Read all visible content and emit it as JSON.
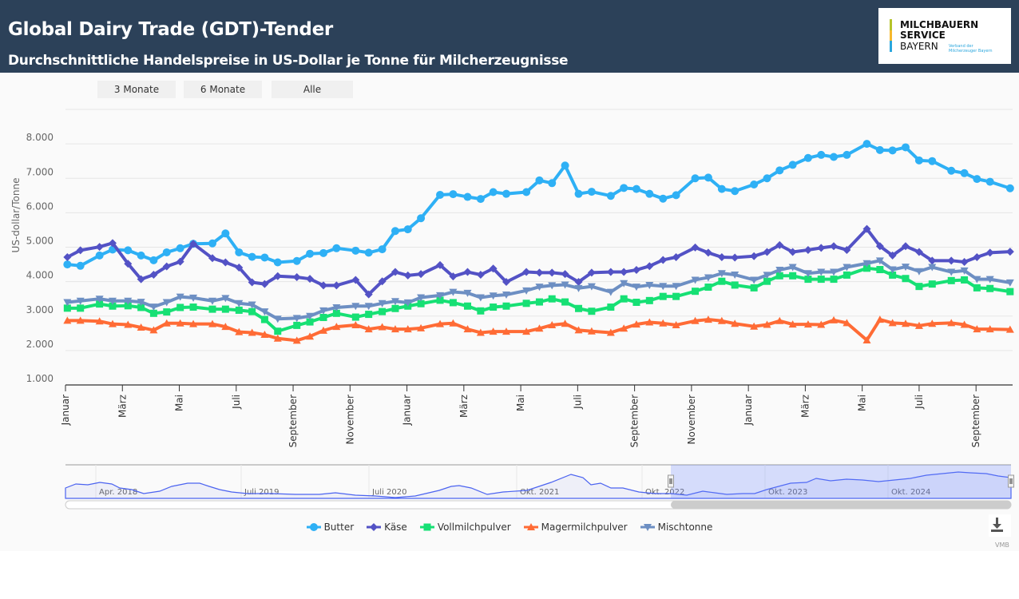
{
  "header": {
    "title": "Global Dairy Trade (GDT)-Tender",
    "subtitle": "Durchschnittliche Handelspreise in US-Dollar je Tonne für Milcherzeugnisse"
  },
  "logo": {
    "line1": "MILCHBAUERN",
    "line2": "SERVICE",
    "line3": "BAYERN",
    "tagline1": "Verband der",
    "tagline2": "Milcherzeuger Bayern",
    "colors": [
      "#b5c32a",
      "#f6b82d",
      "#2aa6dd"
    ]
  },
  "range_buttons": [
    "3 Monate",
    "6 Monate",
    "Alle"
  ],
  "chart_data": {
    "type": "line",
    "ylabel": "US-dollar/Tonne",
    "ylim": [
      1000,
      9000
    ],
    "yticks": [
      "1.000",
      "2.000",
      "3.000",
      "4.000",
      "5.000",
      "6.000",
      "7.000",
      "8.000"
    ],
    "ytick_values": [
      1000,
      2000,
      3000,
      4000,
      5000,
      6000,
      7000,
      8000
    ],
    "xticks": [
      {
        "label": "Januar",
        "date": "2023-01-01"
      },
      {
        "label": "März",
        "date": "2023-03-01"
      },
      {
        "label": "Mai",
        "date": "2023-05-01"
      },
      {
        "label": "Juli",
        "date": "2023-07-01"
      },
      {
        "label": "September",
        "date": "2023-09-01"
      },
      {
        "label": "November",
        "date": "2023-11-01"
      },
      {
        "label": "Januar",
        "date": "2024-01-01"
      },
      {
        "label": "März",
        "date": "2024-03-01"
      },
      {
        "label": "Mai",
        "date": "2024-05-01"
      },
      {
        "label": "Juli",
        "date": "2024-07-01"
      },
      {
        "label": "September",
        "date": "2024-09-01"
      },
      {
        "label": "November",
        "date": "2024-11-01"
      },
      {
        "label": "Januar",
        "date": "2025-01-01"
      },
      {
        "label": "März",
        "date": "2025-03-01"
      },
      {
        "label": "Mai",
        "date": "2025-05-01"
      },
      {
        "label": "Juli",
        "date": "2025-07-01"
      },
      {
        "label": "September",
        "date": "2025-09-01"
      }
    ],
    "xlim": [
      "2023-01-01",
      "2025-10-08"
    ],
    "grid": true,
    "legend_position": "bottom",
    "x": [
      "2023-01-03",
      "2023-01-17",
      "2023-02-07",
      "2023-02-21",
      "2023-03-07",
      "2023-03-21",
      "2023-04-04",
      "2023-04-18",
      "2023-05-02",
      "2023-05-16",
      "2023-06-06",
      "2023-06-20",
      "2023-07-04",
      "2023-07-18",
      "2023-08-01",
      "2023-08-15",
      "2023-09-05",
      "2023-09-19",
      "2023-10-03",
      "2023-10-17",
      "2023-11-07",
      "2023-11-21",
      "2023-12-05",
      "2023-12-19",
      "2024-01-02",
      "2024-01-16",
      "2024-02-06",
      "2024-02-20",
      "2024-03-05",
      "2024-03-19",
      "2024-04-02",
      "2024-04-16",
      "2024-05-07",
      "2024-05-21",
      "2024-06-04",
      "2024-06-18",
      "2024-07-02",
      "2024-07-16",
      "2024-08-06",
      "2024-08-20",
      "2024-09-03",
      "2024-09-17",
      "2024-10-01",
      "2024-10-15",
      "2024-11-05",
      "2024-11-19",
      "2024-12-03",
      "2024-12-17",
      "2025-01-07",
      "2025-01-21",
      "2025-02-04",
      "2025-02-18",
      "2025-03-04",
      "2025-03-18",
      "2025-04-01",
      "2025-04-15",
      "2025-05-06",
      "2025-05-20",
      "2025-06-03",
      "2025-06-17",
      "2025-07-01",
      "2025-07-15",
      "2025-08-05",
      "2025-08-19",
      "2025-09-02",
      "2025-09-16",
      "2025-10-07"
    ],
    "series": [
      {
        "name": "Butter",
        "color": "#2eb0f5",
        "marker": "circle",
        "values": [
          4500,
          4460,
          4760,
          4930,
          4910,
          4760,
          4620,
          4850,
          4970,
          5100,
          5110,
          5400,
          4850,
          4720,
          4700,
          4560,
          4600,
          4810,
          4830,
          4970,
          4900,
          4840,
          4940,
          5470,
          5520,
          5840,
          6520,
          6540,
          6460,
          6400,
          6600,
          6550,
          6600,
          6940,
          6860,
          7370,
          6550,
          6610,
          6490,
          6720,
          6690,
          6550,
          6410,
          6510,
          7000,
          7020,
          6690,
          6630,
          6820,
          7000,
          7230,
          7390,
          7590,
          7680,
          7620,
          7680,
          8000,
          7820,
          7810,
          7900,
          7520,
          7500,
          7220,
          7150,
          6980,
          6900,
          6710
        ]
      },
      {
        "name": "Käse",
        "color": "#5352c5",
        "marker": "diamond",
        "values": [
          4710,
          4910,
          5010,
          5120,
          4520,
          4070,
          4200,
          4440,
          4580,
          5100,
          4680,
          4560,
          4410,
          3980,
          3930,
          4160,
          4130,
          4080,
          3890,
          3890,
          4050,
          3630,
          4010,
          4280,
          4180,
          4220,
          4480,
          4150,
          4280,
          4200,
          4380,
          3990,
          4280,
          4260,
          4260,
          4220,
          3990,
          4260,
          4280,
          4280,
          4340,
          4450,
          4630,
          4710,
          4990,
          4840,
          4710,
          4700,
          4740,
          4860,
          5060,
          4860,
          4920,
          4980,
          5030,
          4920,
          5530,
          5030,
          4760,
          5030,
          4860,
          4610,
          4610,
          4570,
          4710,
          4840,
          4870
        ]
      },
      {
        "name": "Vollmilchpulver",
        "color": "#16e074",
        "marker": "square",
        "values": [
          3230,
          3230,
          3350,
          3290,
          3300,
          3250,
          3080,
          3120,
          3250,
          3260,
          3200,
          3200,
          3170,
          3130,
          2900,
          2560,
          2730,
          2830,
          2960,
          3080,
          2970,
          3050,
          3130,
          3220,
          3290,
          3360,
          3460,
          3390,
          3290,
          3150,
          3260,
          3290,
          3370,
          3410,
          3500,
          3410,
          3220,
          3140,
          3260,
          3500,
          3400,
          3450,
          3570,
          3570,
          3720,
          3840,
          4010,
          3900,
          3820,
          4010,
          4170,
          4170,
          4070,
          4070,
          4070,
          4190,
          4390,
          4350,
          4190,
          4090,
          3860,
          3930,
          4030,
          4050,
          3820,
          3800,
          3710
        ]
      },
      {
        "name": "Magermilchpulver",
        "color": "#ff6b35",
        "marker": "triangle",
        "values": [
          2870,
          2870,
          2850,
          2770,
          2750,
          2670,
          2590,
          2790,
          2790,
          2770,
          2770,
          2690,
          2540,
          2520,
          2460,
          2350,
          2290,
          2410,
          2580,
          2690,
          2740,
          2620,
          2680,
          2620,
          2620,
          2650,
          2770,
          2790,
          2620,
          2520,
          2550,
          2550,
          2550,
          2640,
          2740,
          2780,
          2590,
          2560,
          2520,
          2640,
          2760,
          2820,
          2790,
          2740,
          2860,
          2900,
          2860,
          2780,
          2700,
          2750,
          2860,
          2760,
          2760,
          2750,
          2880,
          2800,
          2300,
          2900,
          2800,
          2780,
          2720,
          2780,
          2800,
          2750,
          2620,
          2620,
          2610
        ]
      },
      {
        "name": "Mischtonne",
        "color": "#6d8fc3",
        "marker": "triangle-down",
        "values": [
          3400,
          3440,
          3500,
          3440,
          3440,
          3410,
          3270,
          3400,
          3560,
          3530,
          3440,
          3520,
          3370,
          3330,
          3130,
          2920,
          2940,
          3000,
          3160,
          3250,
          3290,
          3290,
          3370,
          3430,
          3390,
          3540,
          3600,
          3700,
          3670,
          3540,
          3590,
          3620,
          3740,
          3850,
          3890,
          3910,
          3810,
          3860,
          3700,
          3950,
          3850,
          3900,
          3870,
          3870,
          4050,
          4120,
          4240,
          4200,
          4050,
          4190,
          4340,
          4420,
          4240,
          4280,
          4280,
          4420,
          4530,
          4610,
          4350,
          4430,
          4300,
          4420,
          4280,
          4320,
          4070,
          4070,
          3970
        ]
      }
    ]
  },
  "navigator": {
    "labels": [
      "Apr. 2018",
      "Juli 2019",
      "Juli 2020",
      "Okt. 2021",
      "Okt. 2022",
      "Okt. 2023",
      "Okt. 2024"
    ]
  },
  "download": {
    "icon": "download-icon"
  },
  "credit": "VMB"
}
